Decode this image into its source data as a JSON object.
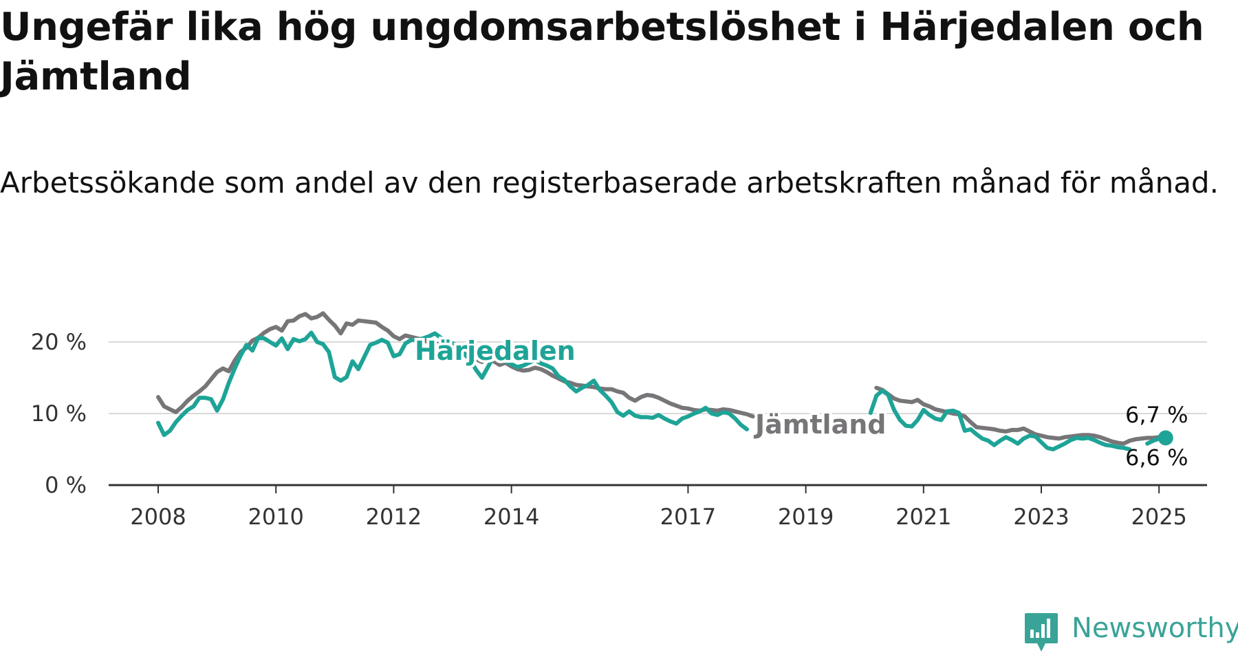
{
  "title": "Ungefär lika hög ungdomsarbetslöshet i Härjedalen och Jämtland",
  "subtitle": "Arbetssökande som andel av den registerbaserade arbetskraften månad för månad.",
  "brand": {
    "name": "Newsworthy",
    "icon": "newsworthy-logo-icon",
    "color": "#3aa397"
  },
  "chart_data": {
    "type": "line",
    "xlim": [
      2008.0,
      2025.9
    ],
    "ylim": [
      0,
      24
    ],
    "y_ticks": [
      0,
      10,
      20
    ],
    "y_tick_labels": [
      "0 %",
      "10 %",
      "20 %"
    ],
    "x_ticks": [
      2008,
      2010,
      2012,
      2014,
      2017,
      2019,
      2021,
      2023,
      2025
    ],
    "x_tick_labels": [
      "2008",
      "2010",
      "2012",
      "2014",
      "2017",
      "2019",
      "2021",
      "2023",
      "2025"
    ],
    "grid": true,
    "series": [
      {
        "name": "Jämtland",
        "color": "#777578",
        "label_position": "right-of-2018",
        "end_label": "6,7 %",
        "segments": [
          {
            "x": [
              2008.0,
              2008.1,
              2008.2,
              2008.3,
              2008.4,
              2008.5,
              2008.6,
              2008.7,
              2008.8,
              2008.9,
              2009.0,
              2009.1,
              2009.2,
              2009.3,
              2009.4,
              2009.5,
              2009.6,
              2009.7,
              2009.8,
              2009.9,
              2010.0,
              2010.1,
              2010.2,
              2010.3,
              2010.4,
              2010.5,
              2010.6,
              2010.7,
              2010.8,
              2010.9,
              2011.0,
              2011.1,
              2011.2,
              2011.3,
              2011.4,
              2011.5,
              2011.6,
              2011.7,
              2011.8,
              2011.9,
              2012.0,
              2012.1,
              2012.2,
              2012.3,
              2012.4,
              2012.5,
              2012.6,
              2012.7,
              2012.8,
              2012.9,
              2013.0,
              2013.1,
              2013.2,
              2013.3,
              2013.4,
              2013.5,
              2013.6,
              2013.7,
              2013.8,
              2013.9,
              2014.0,
              2014.1,
              2014.2,
              2014.3,
              2014.4,
              2014.5,
              2014.6,
              2014.7,
              2014.8,
              2014.9,
              2015.0,
              2015.1,
              2015.2,
              2015.3,
              2015.4,
              2015.5,
              2015.6,
              2015.7,
              2015.8,
              2015.9,
              2016.0,
              2016.1,
              2016.2,
              2016.3,
              2016.4,
              2016.5,
              2016.6,
              2016.7,
              2016.8,
              2016.9,
              2017.0,
              2017.1,
              2017.2,
              2017.3,
              2017.4,
              2017.5,
              2017.6,
              2017.7,
              2017.8,
              2017.9,
              2018.0,
              2018.1
            ],
            "y": [
              12.3,
              11.0,
              10.6,
              10.2,
              10.9,
              11.8,
              12.5,
              13.1,
              13.8,
              14.8,
              15.8,
              16.3,
              15.9,
              17.4,
              18.6,
              19.2,
              20.2,
              20.6,
              21.3,
              21.8,
              22.1,
              21.6,
              22.9,
              23.0,
              23.6,
              23.9,
              23.3,
              23.5,
              24.0,
              23.1,
              22.3,
              21.2,
              22.6,
              22.4,
              23.0,
              22.9,
              22.8,
              22.7,
              22.1,
              21.6,
              20.8,
              20.4,
              20.9,
              20.7,
              20.5,
              20.3,
              19.9,
              19.8,
              19.6,
              19.2,
              19.0,
              18.9,
              18.5,
              18.2,
              17.6,
              17.2,
              17.8,
              17.3,
              16.8,
              17.1,
              16.6,
              16.2,
              16.0,
              16.1,
              16.4,
              16.2,
              15.8,
              15.3,
              14.9,
              14.5,
              14.3,
              14.0,
              13.9,
              13.8,
              13.7,
              13.5,
              13.4,
              13.4,
              13.1,
              12.9,
              12.2,
              11.8,
              12.3,
              12.6,
              12.5,
              12.2,
              11.8,
              11.4,
              11.1,
              10.8,
              10.7,
              10.5,
              10.4,
              10.6,
              10.5,
              10.4,
              10.6,
              10.5,
              10.3,
              10.1,
              9.9,
              9.6
            ]
          },
          {
            "x": [
              2020.2,
              2020.3,
              2020.4,
              2020.5,
              2020.6,
              2020.7,
              2020.8,
              2020.9,
              2021.0,
              2021.1,
              2021.2,
              2021.3,
              2021.4,
              2021.5,
              2021.6,
              2021.7,
              2021.8,
              2021.9,
              2022.0,
              2022.1,
              2022.2,
              2022.3,
              2022.4,
              2022.5,
              2022.6,
              2022.7,
              2022.8,
              2022.9,
              2023.0,
              2023.1,
              2023.2,
              2023.3,
              2023.4,
              2023.5,
              2023.6,
              2023.7,
              2023.8,
              2023.9,
              2024.0,
              2024.1,
              2024.2,
              2024.3,
              2024.4,
              2024.5,
              2024.6,
              2024.7,
              2024.8,
              2024.9,
              2025.0,
              2025.1
            ],
            "y": [
              13.6,
              13.3,
              12.7,
              12.1,
              11.8,
              11.7,
              11.6,
              11.9,
              11.3,
              11.0,
              10.6,
              10.4,
              10.2,
              10.0,
              9.9,
              9.6,
              8.8,
              8.1,
              8.0,
              7.9,
              7.8,
              7.6,
              7.5,
              7.7,
              7.7,
              7.9,
              7.5,
              7.1,
              6.9,
              6.7,
              6.6,
              6.5,
              6.7,
              6.8,
              6.9,
              7.0,
              7.0,
              6.9,
              6.7,
              6.4,
              6.1,
              5.9,
              5.8,
              6.2,
              6.4,
              6.5,
              6.6,
              6.6,
              6.7,
              6.7
            ]
          }
        ]
      },
      {
        "name": "Härjedalen",
        "color": "#1ea497",
        "label_position": "above-2013",
        "end_label": "6,6 %",
        "segments": [
          {
            "x": [
              2008.0,
              2008.1,
              2008.2,
              2008.3,
              2008.4,
              2008.5,
              2008.6,
              2008.7,
              2008.8,
              2008.9,
              2009.0,
              2009.1,
              2009.2,
              2009.3,
              2009.4,
              2009.5,
              2009.6,
              2009.7,
              2009.8,
              2009.9,
              2010.0,
              2010.1,
              2010.2,
              2010.3,
              2010.4,
              2010.5,
              2010.6,
              2010.7,
              2010.8,
              2010.9,
              2011.0,
              2011.1,
              2011.2,
              2011.3,
              2011.4,
              2011.5,
              2011.6,
              2011.7,
              2011.8,
              2011.9,
              2012.0,
              2012.1,
              2012.2,
              2012.3,
              2012.4,
              2012.5,
              2012.6,
              2012.7,
              2012.8,
              2012.9,
              2013.0,
              2013.1,
              2013.2,
              2013.3,
              2013.4,
              2013.5,
              2013.6,
              2013.7,
              2013.8,
              2013.9,
              2014.0,
              2014.1,
              2014.2,
              2014.3,
              2014.4,
              2014.5,
              2014.6,
              2014.7,
              2014.8,
              2014.9,
              2015.0,
              2015.1,
              2015.2,
              2015.3,
              2015.4,
              2015.5,
              2015.6,
              2015.7,
              2015.8,
              2015.9,
              2016.0,
              2016.1,
              2016.2,
              2016.3,
              2016.4,
              2016.5,
              2016.6,
              2016.7,
              2016.8,
              2016.9,
              2017.0,
              2017.1,
              2017.2,
              2017.3,
              2017.4,
              2017.5,
              2017.6,
              2017.7,
              2017.8,
              2017.9,
              2018.0
            ],
            "y": [
              8.7,
              7.0,
              7.6,
              8.8,
              9.7,
              10.5,
              11.0,
              12.2,
              12.2,
              12.0,
              10.4,
              12.0,
              14.3,
              16.3,
              18.1,
              19.6,
              18.8,
              20.6,
              20.5,
              20.0,
              19.5,
              20.5,
              19.0,
              20.4,
              20.1,
              20.4,
              21.3,
              20.0,
              19.7,
              18.6,
              15.1,
              14.6,
              15.1,
              17.3,
              16.2,
              17.9,
              19.6,
              19.9,
              20.3,
              19.9,
              18.0,
              18.3,
              19.8,
              20.3,
              20.3,
              20.5,
              20.8,
              21.2,
              20.6,
              20.1,
              19.8,
              19.5,
              18.3,
              17.5,
              16.1,
              15.0,
              16.5,
              18.0,
              17.6,
              17.3,
              16.9,
              16.5,
              16.7,
              17.1,
              17.5,
              17.0,
              16.7,
              16.3,
              15.2,
              14.7,
              13.8,
              13.1,
              13.6,
              14.0,
              14.6,
              13.3,
              12.5,
              11.6,
              10.2,
              9.7,
              10.3,
              9.7,
              9.5,
              9.5,
              9.4,
              9.8,
              9.3,
              8.9,
              8.6,
              9.3,
              9.6,
              10.0,
              10.3,
              10.8,
              10.0,
              9.8,
              10.2,
              10.0,
              9.3,
              8.4,
              7.8
            ]
          },
          {
            "x": [
              2020.1,
              2020.2,
              2020.3,
              2020.4,
              2020.5,
              2020.6,
              2020.7,
              2020.8,
              2020.9,
              2021.0,
              2021.1,
              2021.2,
              2021.3,
              2021.4,
              2021.5,
              2021.6,
              2021.7,
              2021.8,
              2021.9,
              2022.0,
              2022.1,
              2022.2,
              2022.3,
              2022.4,
              2022.5,
              2022.6,
              2022.7,
              2022.8,
              2022.9,
              2023.0,
              2023.1,
              2023.2,
              2023.3,
              2023.4,
              2023.5,
              2023.6,
              2023.7,
              2023.8,
              2023.9,
              2024.0,
              2024.1,
              2024.2,
              2024.3,
              2024.4,
              2024.5
            ],
            "y": [
              10.1,
              12.5,
              13.2,
              12.6,
              10.5,
              9.1,
              8.3,
              8.2,
              9.1,
              10.5,
              9.8,
              9.3,
              9.1,
              10.3,
              10.4,
              10.1,
              7.6,
              7.8,
              7.1,
              6.5,
              6.2,
              5.6,
              6.2,
              6.7,
              6.3,
              5.8,
              6.5,
              6.9,
              6.8,
              6.0,
              5.2,
              5.0,
              5.4,
              5.8,
              6.3,
              6.6,
              6.5,
              6.6,
              6.3,
              5.9,
              5.6,
              5.5,
              5.3,
              5.2,
              5.0
            ]
          },
          {
            "x": [
              2024.8,
              2024.9,
              2025.0,
              2025.1
            ],
            "y": [
              5.8,
              6.2,
              6.5,
              6.6
            ]
          }
        ]
      }
    ]
  }
}
